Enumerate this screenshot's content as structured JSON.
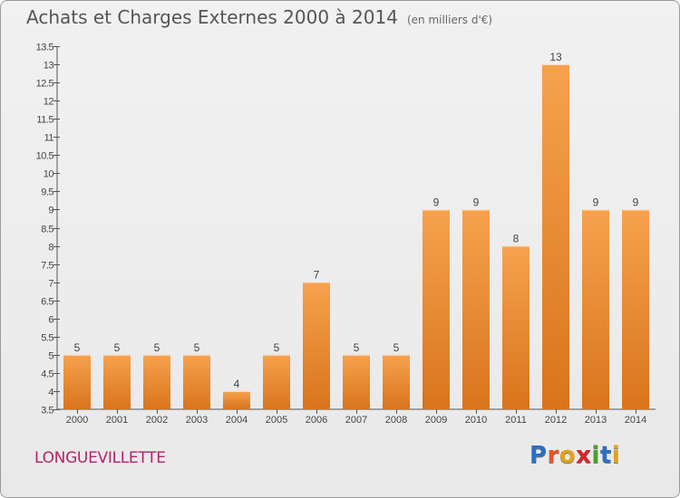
{
  "header": {
    "title": "Achats et Charges Externes 2000 à 2014",
    "subtitle": "(en milliers d'€)"
  },
  "footer": {
    "place": "LONGUEVILLETTE",
    "brand_letters": [
      "P",
      "r",
      "o",
      "x",
      "i",
      "t",
      "i"
    ],
    "brand_colors": [
      "#2b6fc1",
      "#e2572a",
      "#e2a21c",
      "#d8262a",
      "#4a9d2e",
      "#2b6fc1",
      "#e2a21c"
    ]
  },
  "colors": {
    "bar_light": "#f6a24e",
    "bar_dark": "#d9741c",
    "axis": "#555555",
    "label": "#444444",
    "grid_line": "#ffffff"
  },
  "chart_data": {
    "type": "bar",
    "categories": [
      "2000",
      "2001",
      "2002",
      "2003",
      "2004",
      "2005",
      "2006",
      "2007",
      "2008",
      "2009",
      "2010",
      "2011",
      "2012",
      "2013",
      "2014"
    ],
    "values": [
      5,
      5,
      5,
      5,
      4,
      5,
      7,
      5,
      5,
      9,
      9,
      8,
      13,
      9,
      9
    ],
    "data_labels": [
      "5",
      "5",
      "5",
      "5",
      "4",
      "5",
      "7",
      "5",
      "5",
      "9",
      "9",
      "8",
      "13",
      "9",
      "9"
    ],
    "ylim": [
      3.5,
      13.5
    ],
    "yticks": [
      "3.5",
      "4",
      "4.5",
      "5",
      "5.5",
      "6",
      "6.5",
      "7",
      "7.5",
      "8",
      "8.5",
      "9",
      "9.5",
      "10",
      "10.5",
      "11",
      "11.5",
      "12",
      "12.5",
      "13",
      "13.5"
    ],
    "ytick_values": [
      3.5,
      4,
      4.5,
      5,
      5.5,
      6,
      6.5,
      7,
      7.5,
      8,
      8.5,
      9,
      9.5,
      10,
      10.5,
      11,
      11.5,
      12,
      12.5,
      13,
      13.5
    ],
    "grid": false
  }
}
